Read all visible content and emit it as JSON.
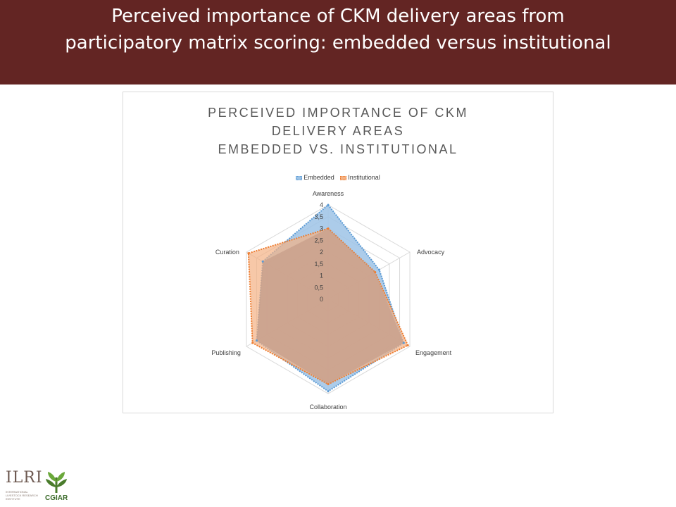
{
  "slide": {
    "title_line1": "Perceived importance of CKM delivery areas from",
    "title_line2": "participatory matrix scoring: embedded versus institutional"
  },
  "colors": {
    "title_band": "#632523",
    "embedded_fill": "#9dc3e6",
    "embedded_stroke": "#5b9bd5",
    "institutional_fill": "#f4b183",
    "institutional_stroke": "#ed7d31",
    "overlap_fill": "#c09582",
    "grid": "#d9d9d9"
  },
  "chart_data": {
    "type": "radar",
    "title_lines": [
      "PERCEIVED IMPORTANCE OF CKM",
      "DELIVERY AREAS",
      "EMBEDDED VS. INSTITUTIONAL"
    ],
    "categories": [
      "Awareness",
      "Advocacy",
      "Engagement",
      "Collaboration",
      "Publishing",
      "Curation"
    ],
    "series": [
      {
        "name": "Embedded",
        "values": [
          4.0,
          2.5,
          3.7,
          3.9,
          3.5,
          3.2
        ]
      },
      {
        "name": "Institutional",
        "values": [
          3.0,
          2.3,
          3.9,
          3.6,
          3.7,
          3.9
        ]
      }
    ],
    "rmax": 4,
    "ticks": [
      "0",
      "0,5",
      "1",
      "1,5",
      "2",
      "2,5",
      "3",
      "3,5",
      "4"
    ],
    "legend_position": "top",
    "grid": true
  },
  "logos": {
    "ilri": "ILRI",
    "ilri_sub": "INTERNATIONAL LIVESTOCK RESEARCH INSTITUTE",
    "cgiar": "CGIAR"
  }
}
